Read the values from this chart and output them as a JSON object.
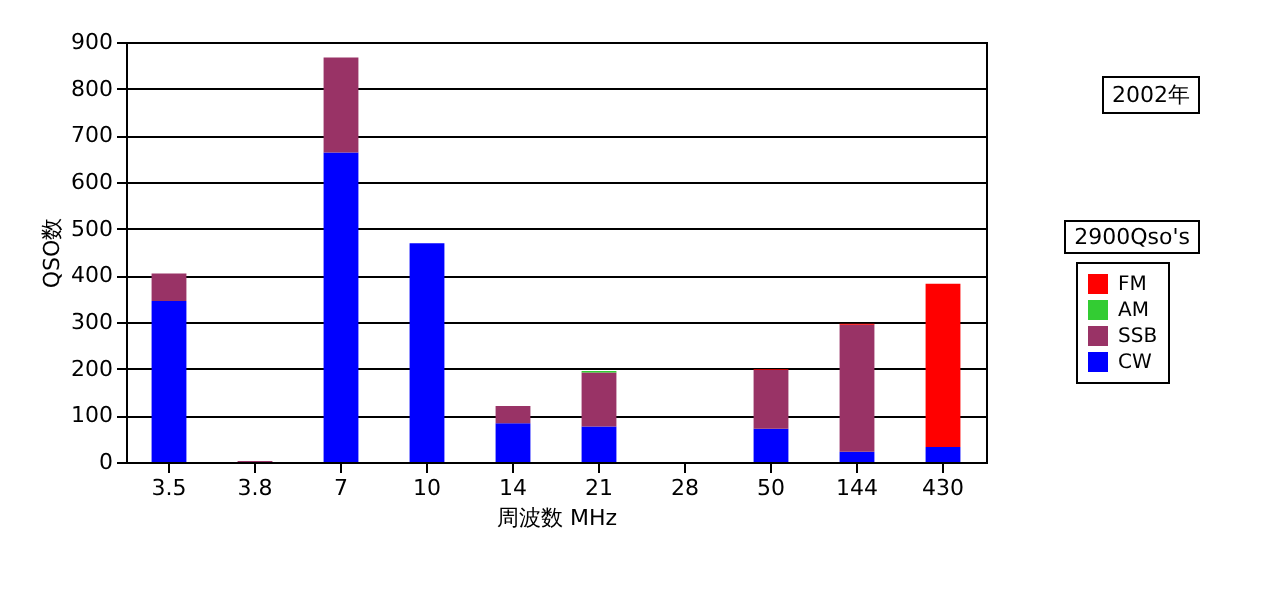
{
  "chart_data": {
    "type": "bar",
    "stacked": true,
    "xlabel": "周波数 MHz",
    "ylabel": "QSO数",
    "categories": [
      "3.5",
      "3.8",
      "7",
      "10",
      "14",
      "21",
      "28",
      "50",
      "144",
      "430"
    ],
    "series": [
      {
        "name": "CW",
        "color": "#0000ff",
        "values": [
          345,
          null,
          663,
          469,
          83,
          76,
          null,
          71,
          22,
          32
        ]
      },
      {
        "name": "SSB",
        "color": "#993366",
        "values": [
          59,
          2,
          204,
          null,
          37,
          116,
          null,
          126,
          272,
          null
        ]
      },
      {
        "name": "AM",
        "color": "#33cc33",
        "values": [
          null,
          null,
          null,
          null,
          null,
          3,
          null,
          null,
          null,
          null
        ]
      },
      {
        "name": "FM",
        "color": "#ff0000",
        "values": [
          null,
          null,
          null,
          null,
          null,
          null,
          null,
          2,
          2,
          350
        ]
      }
    ],
    "ylim": [
      0,
      900
    ],
    "yticks": [
      0,
      100,
      200,
      300,
      400,
      500,
      600,
      700,
      800,
      900
    ],
    "grid": "y",
    "legend": "right",
    "annotations": [
      "2002年",
      "2900Qso's"
    ]
  }
}
